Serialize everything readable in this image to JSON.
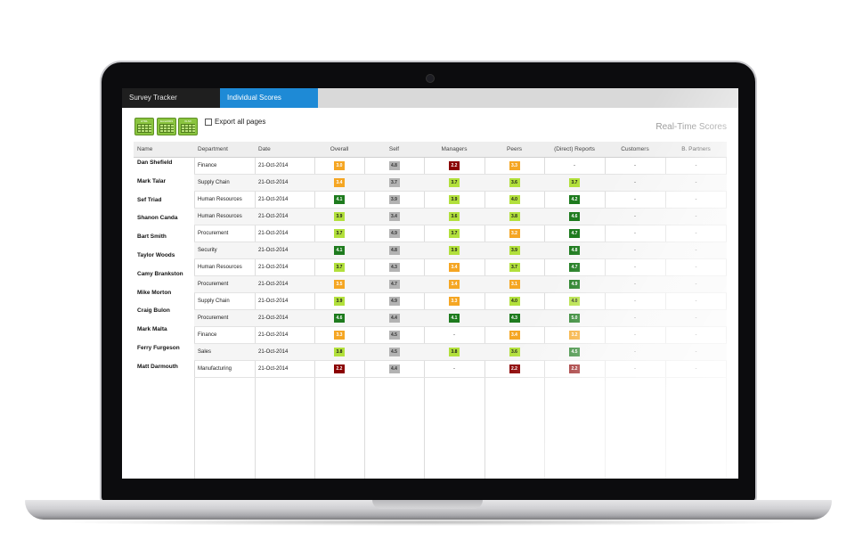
{
  "tabs": [
    {
      "label": "Survey Tracker",
      "active": false
    },
    {
      "label": "Individual Scores",
      "active": true
    }
  ],
  "toolbar": {
    "export_buttons": [
      {
        "label": "HTML",
        "icon": "table-export-icon"
      },
      {
        "label": "Excel2003",
        "icon": "table-export-icon"
      },
      {
        "label": "XLSX",
        "icon": "table-export-icon"
      }
    ],
    "export_all_label": "Export all pages",
    "export_all_checked": false,
    "title": "Real-Time Scores"
  },
  "table": {
    "columns": [
      "Name",
      "Department",
      "Date",
      "Overall",
      "Self",
      "Managers",
      "Peers",
      "(Direct) Reports",
      "Customers",
      "B. Partners"
    ],
    "rows": [
      {
        "name": "Dan Shefield",
        "dept": "Finance",
        "date": "21-Oct-2014",
        "scores": [
          "3.0",
          "4.8",
          "2.2",
          "3.3",
          "-",
          "-",
          "-"
        ]
      },
      {
        "name": "Mark Talar",
        "dept": "Supply Chain",
        "date": "21-Oct-2014",
        "scores": [
          "3.4",
          "3.7",
          "3.7",
          "3.6",
          "3.7",
          "-",
          "-"
        ]
      },
      {
        "name": "Sef Triad",
        "dept": "Human Resources",
        "date": "21-Oct-2014",
        "scores": [
          "4.1",
          "3.9",
          "3.9",
          "4.0",
          "4.2",
          "-",
          "-"
        ]
      },
      {
        "name": "Shanon Canda",
        "dept": "Human Resources",
        "date": "21-Oct-2014",
        "scores": [
          "3.9",
          "3.4",
          "3.6",
          "3.8",
          "4.6",
          "-",
          "-"
        ]
      },
      {
        "name": "Bart Smith",
        "dept": "Procurement",
        "date": "21-Oct-2014",
        "scores": [
          "3.7",
          "4.9",
          "3.7",
          "3.2",
          "4.7",
          "-",
          "-"
        ]
      },
      {
        "name": "Taylor Woods",
        "dept": "Security",
        "date": "21-Oct-2014",
        "scores": [
          "4.1",
          "4.8",
          "3.9",
          "3.9",
          "4.8",
          "-",
          "-"
        ]
      },
      {
        "name": "Camy Brankston",
        "dept": "Human Resources",
        "date": "21-Oct-2014",
        "scores": [
          "3.7",
          "4.3",
          "3.4",
          "3.7",
          "4.7",
          "-",
          "-"
        ]
      },
      {
        "name": "Mike Morton",
        "dept": "Procurement",
        "date": "21-Oct-2014",
        "scores": [
          "3.5",
          "4.7",
          "3.4",
          "3.1",
          "4.9",
          "-",
          "-"
        ]
      },
      {
        "name": "Craig Bulon",
        "dept": "Supply Chain",
        "date": "21-Oct-2014",
        "scores": [
          "3.9",
          "4.9",
          "3.3",
          "4.0",
          "4.0",
          "-",
          "-"
        ]
      },
      {
        "name": "Mark Malta",
        "dept": "Procurement",
        "date": "21-Oct-2014",
        "scores": [
          "4.6",
          "4.4",
          "4.1",
          "4.3",
          "5.0",
          "-",
          "-"
        ]
      },
      {
        "name": "Ferry Furgeson",
        "dept": "Finance",
        "date": "21-Oct-2014",
        "scores": [
          "3.3",
          "4.5",
          "-",
          "3.4",
          "3.2",
          "-",
          "-"
        ]
      },
      {
        "name": "Matt Darmouth",
        "dept": "Sales",
        "date": "21-Oct-2014",
        "scores": [
          "3.8",
          "4.5",
          "3.8",
          "3.6",
          "4.5",
          "-",
          "-"
        ]
      },
      {
        "name": "",
        "dept": "Manufacturing",
        "date": "21-Oct-2014",
        "scores": [
          "2.2",
          "4.4",
          "-",
          "2.2",
          "2.2",
          "-",
          "-"
        ]
      }
    ],
    "colors": {
      "dark_red": "#8b0000",
      "orange": "#f5a623",
      "light_green": "#b2e03c",
      "dark_green": "#1e7b1e",
      "gray": "#b3b3b3"
    }
  },
  "theme": {
    "tab_active": "#1e8ad6",
    "tab_inactive": "#1f1f1f",
    "export_green": "#8ac43f"
  }
}
